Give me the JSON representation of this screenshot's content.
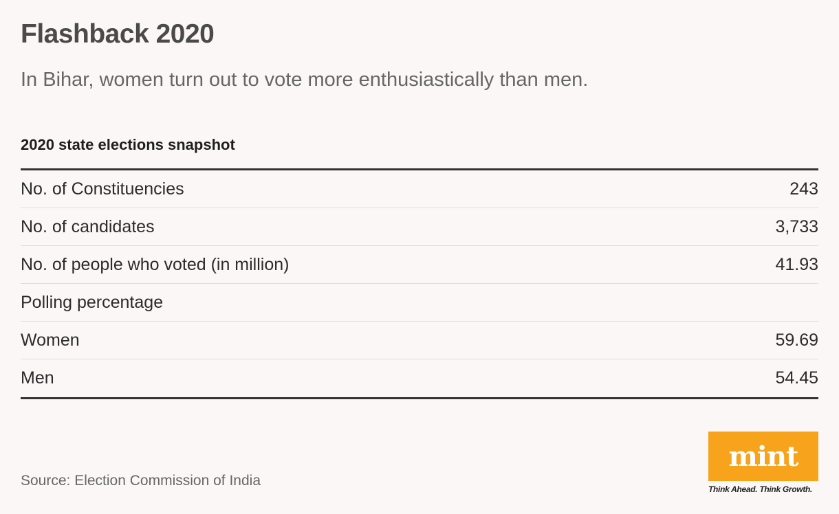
{
  "header": {
    "title": "Flashback 2020",
    "subtitle": "In Bihar, women turn out to vote more enthusiastically than men."
  },
  "chart_data": {
    "type": "table",
    "title": "2020 state elections snapshot",
    "rows": [
      {
        "label": "No. of Constituencies",
        "value": "243"
      },
      {
        "label": "No. of candidates",
        "value": "3,733"
      },
      {
        "label": "No. of people who voted (in million)",
        "value": "41.93"
      },
      {
        "label": "Polling percentage",
        "value": ""
      },
      {
        "label": "Women",
        "value": "59.69"
      },
      {
        "label": "Men",
        "value": "54.45"
      }
    ]
  },
  "footer": {
    "source": "Source: Election Commission of India"
  },
  "logo": {
    "brand": "mint",
    "tagline": "Think Ahead. Think Growth.",
    "color": "#f7a31c"
  }
}
